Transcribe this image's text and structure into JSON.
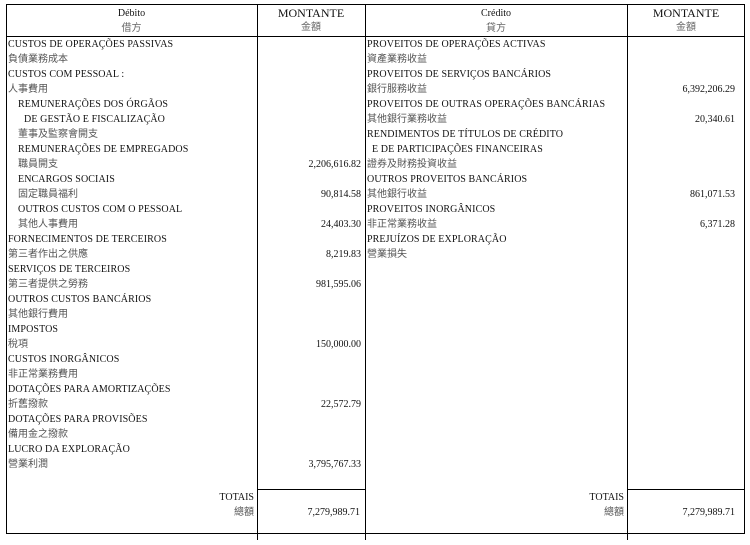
{
  "header": {
    "debit_pt": "Débito",
    "debit_zh": "借方",
    "credit_pt": "Crédito",
    "credit_zh": "貸方",
    "amount_pt": "MONTANTE",
    "amount_zh": "金額"
  },
  "debit_rows": [
    {
      "label": "CUSTOS DE OPERAÇÕES PASSIVAS",
      "amount": "",
      "lang": "pt",
      "indent": 0
    },
    {
      "label": "負債業務成本",
      "amount": "",
      "lang": "zh",
      "indent": 0
    },
    {
      "label": "CUSTOS COM PESSOAL :",
      "amount": "",
      "lang": "pt",
      "indent": 0
    },
    {
      "label": "人事費用",
      "amount": "",
      "lang": "zh",
      "indent": 0
    },
    {
      "label": "REMUNERAÇÕES DOS ÓRGÃOS",
      "amount": "",
      "lang": "pt",
      "indent": 1
    },
    {
      "label": "DE GESTÃO E FISCALIZAÇÃO",
      "amount": "",
      "lang": "pt",
      "indent": 2
    },
    {
      "label": "董事及監察會開支",
      "amount": "",
      "lang": "zh",
      "indent": 1
    },
    {
      "label": "REMUNERAÇÕES DE EMPREGADOS",
      "amount": "",
      "lang": "pt",
      "indent": 1
    },
    {
      "label": "職員開支",
      "amount": "2,206,616.82",
      "lang": "zh",
      "indent": 1
    },
    {
      "label": "ENCARGOS SOCIAIS",
      "amount": "",
      "lang": "pt",
      "indent": 1
    },
    {
      "label": "固定職員福利",
      "amount": "90,814.58",
      "lang": "zh",
      "indent": 1
    },
    {
      "label": "OUTROS CUSTOS COM O PESSOAL",
      "amount": "",
      "lang": "pt",
      "indent": 1
    },
    {
      "label": "其他人事費用",
      "amount": "24,403.30",
      "lang": "zh",
      "indent": 1
    },
    {
      "label": "FORNECIMENTOS DE TERCEIROS",
      "amount": "",
      "lang": "pt",
      "indent": 0
    },
    {
      "label": "第三者作出之供應",
      "amount": "8,219.83",
      "lang": "zh",
      "indent": 0
    },
    {
      "label": "SERVIÇOS DE TERCEIROS",
      "amount": "",
      "lang": "pt",
      "indent": 0
    },
    {
      "label": "第三者提供之勞務",
      "amount": "981,595.06",
      "lang": "zh",
      "indent": 0
    },
    {
      "label": "OUTROS CUSTOS BANCÁRIOS",
      "amount": "",
      "lang": "pt",
      "indent": 0
    },
    {
      "label": "其他銀行費用",
      "amount": "",
      "lang": "zh",
      "indent": 0
    },
    {
      "label": "IMPOSTOS",
      "amount": "",
      "lang": "pt",
      "indent": 0
    },
    {
      "label": "稅項",
      "amount": "150,000.00",
      "lang": "zh",
      "indent": 0
    },
    {
      "label": "CUSTOS INORGÂNICOS",
      "amount": "",
      "lang": "pt",
      "indent": 0
    },
    {
      "label": "非正常業務費用",
      "amount": "",
      "lang": "zh",
      "indent": 0
    },
    {
      "label": "DOTAÇÕES PARA AMORTIZAÇÕES",
      "amount": "",
      "lang": "pt",
      "indent": 0
    },
    {
      "label": "折舊撥款",
      "amount": "22,572.79",
      "lang": "zh",
      "indent": 0
    },
    {
      "label": "DOTAÇÕES PARA PROVISÕES",
      "amount": "",
      "lang": "pt",
      "indent": 0
    },
    {
      "label": "備用金之撥款",
      "amount": "",
      "lang": "zh",
      "indent": 0
    },
    {
      "label": "LUCRO DA EXPLORAÇÃO",
      "amount": "",
      "lang": "pt",
      "indent": 0
    },
    {
      "label": "營業利潤",
      "amount": "3,795,767.33",
      "lang": "zh",
      "indent": 0
    }
  ],
  "credit_rows": [
    {
      "label": "PROVEITOS DE OPERAÇÕES ACTIVAS",
      "amount": "",
      "lang": "pt",
      "indent": 0
    },
    {
      "label": "資產業務收益",
      "amount": "",
      "lang": "zh",
      "indent": 0
    },
    {
      "label": "PROVEITOS DE SERVIÇOS BANCÁRIOS",
      "amount": "",
      "lang": "pt",
      "indent": 0
    },
    {
      "label": "銀行服務收益",
      "amount": "6,392,206.29",
      "lang": "zh",
      "indent": 0
    },
    {
      "label": "PROVEITOS DE OUTRAS OPERAÇÕES BANCÁRIAS",
      "amount": "",
      "lang": "pt",
      "indent": 0
    },
    {
      "label": "其他銀行業務收益",
      "amount": "20,340.61",
      "lang": "zh",
      "indent": 0
    },
    {
      "label": "RENDIMENTOS DE TÍTULOS DE CRÉDITO",
      "amount": "",
      "lang": "pt",
      "indent": 0
    },
    {
      "label": "E DE PARTICIPAÇÕES FINANCEIRAS",
      "amount": "",
      "lang": "pt",
      "indent": 3
    },
    {
      "label": "證券及財務投資收益",
      "amount": "",
      "lang": "zh",
      "indent": 0
    },
    {
      "label": "OUTROS PROVEITOS BANCÁRIOS",
      "amount": "",
      "lang": "pt",
      "indent": 0
    },
    {
      "label": "其他銀行收益",
      "amount": "861,071.53",
      "lang": "zh",
      "indent": 0
    },
    {
      "label": "PROVEITOS INORGÂNICOS",
      "amount": "",
      "lang": "pt",
      "indent": 0
    },
    {
      "label": "非正常業務收益",
      "amount": "6,371.28",
      "lang": "zh",
      "indent": 0
    },
    {
      "label": "PREJUÍZOS DE EXPLORAÇÃO",
      "amount": "",
      "lang": "pt",
      "indent": 0
    },
    {
      "label": "營業損失",
      "amount": "",
      "lang": "zh",
      "indent": 0
    }
  ],
  "totals": {
    "label_pt": "TOTAIS",
    "label_zh": "總額",
    "debit_total": "7,279,989.71",
    "credit_total": "7,279,989.71"
  }
}
